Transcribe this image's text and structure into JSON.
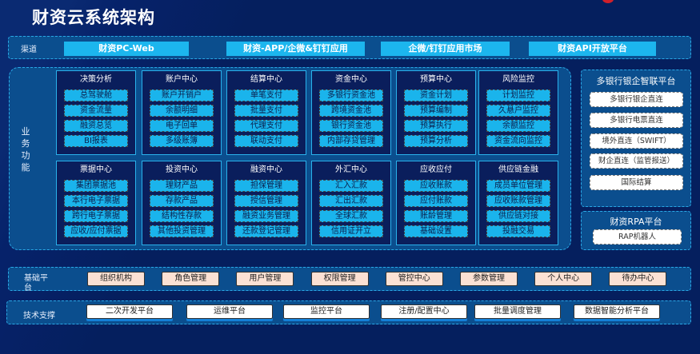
{
  "title": "财资云系统架构",
  "channel": {
    "label": "渠道",
    "items": [
      "财资PC-Web",
      "财资-APP/企微&钉钉应用",
      "企微/钉钉应用市场",
      "财资API开放平台"
    ]
  },
  "business": {
    "label": "业务功能",
    "modules": [
      {
        "title": "决策分析",
        "items": [
          "总驾驶舱",
          "资金流量",
          "融资总览",
          "BI报表"
        ]
      },
      {
        "title": "账户中心",
        "items": [
          "账户开销户",
          "余额明细",
          "电子回单",
          "多级账簿"
        ]
      },
      {
        "title": "结算中心",
        "items": [
          "单笔支付",
          "批量支付",
          "代理支付",
          "联动支付"
        ]
      },
      {
        "title": "资金中心",
        "items": [
          "多银行资金池",
          "跨境资金池",
          "银行资金池",
          "内部存贷管理"
        ]
      },
      {
        "title": "预算中心",
        "items": [
          "资金计划",
          "预算编制",
          "预算执行",
          "预算分析"
        ]
      },
      {
        "title": "风险监控",
        "items": [
          "计划监控",
          "久悬户监控",
          "余额监控",
          "资金流向监控"
        ]
      },
      {
        "title": "票据中心",
        "items": [
          "集团票据池",
          "本行电子票据",
          "跨行电子票据",
          "应收/应付票据"
        ]
      },
      {
        "title": "投资中心",
        "items": [
          "理财产品",
          "存款产品",
          "结构性存款",
          "其他投资管理"
        ]
      },
      {
        "title": "融资中心",
        "items": [
          "担保管理",
          "授信管理",
          "融资业务管理",
          "还款登记管理"
        ]
      },
      {
        "title": "外汇中心",
        "items": [
          "汇入汇款",
          "汇出汇款",
          "全球汇款",
          "信用证开立"
        ]
      },
      {
        "title": "应收应付",
        "items": [
          "应收账款",
          "应付账款",
          "账龄管理",
          "基础设置"
        ]
      },
      {
        "title": "供应链金融",
        "items": [
          "成员单位管理",
          "应收账款管理",
          "供应链对接",
          "投融交易"
        ]
      }
    ]
  },
  "bank_platform": {
    "title": "多银行银企智联平台",
    "items": [
      "多银行银企直连",
      "多银行电票直连",
      "境外直连（SWIFT）",
      "财企直连（监管报送）",
      "国际结算"
    ]
  },
  "rpa_platform": {
    "title": "财资RPA平台",
    "items": [
      "RAP机器人"
    ]
  },
  "base": {
    "label": "基础平台",
    "items": [
      "组织机构",
      "角色管理",
      "用户管理",
      "权限管理",
      "管控中心",
      "参数管理",
      "个人中心",
      "待办中心"
    ]
  },
  "tech": {
    "label": "技术支撑",
    "items": [
      "二次开发平台",
      "运维平台",
      "监控平台",
      "注册/配置中心",
      "批量调度管理",
      "数据智能分析平台"
    ]
  },
  "colors": {
    "background": "#051f5e",
    "panel": "#0b4e8e",
    "item": "#1ab4ec",
    "base_item": "#fbe1d4"
  }
}
